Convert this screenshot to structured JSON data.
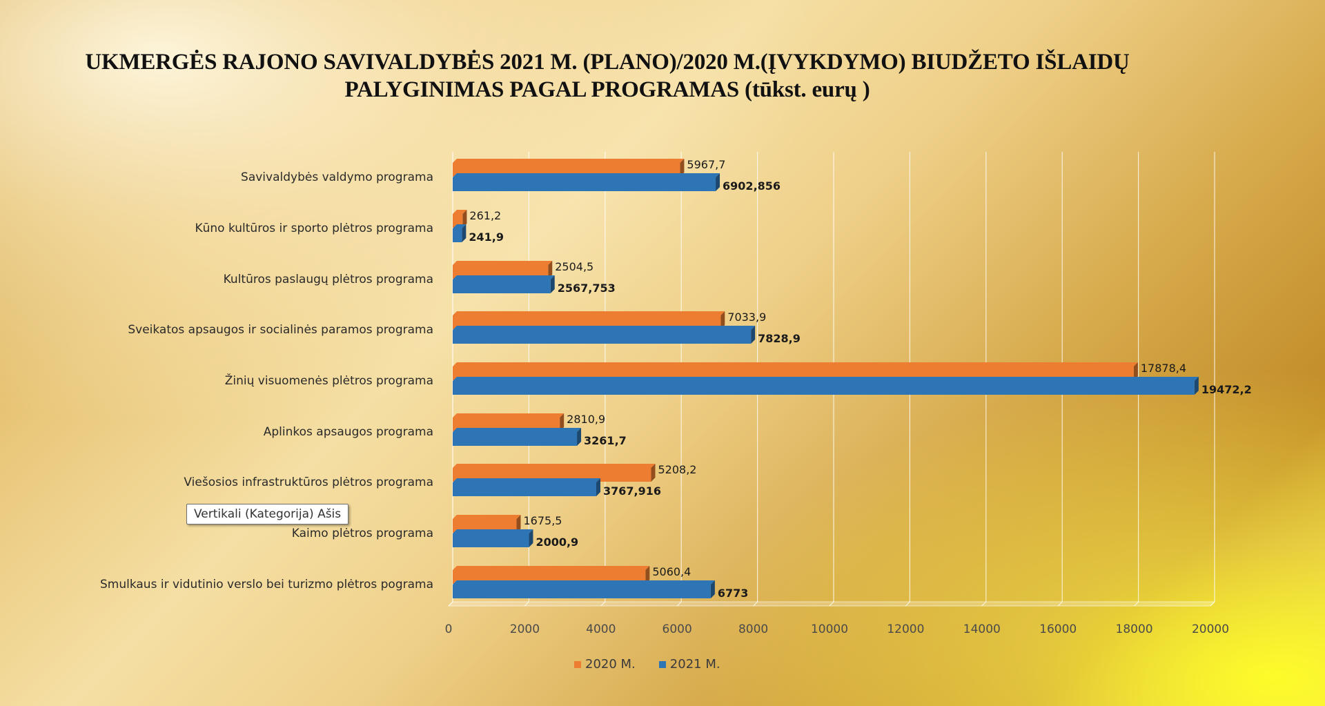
{
  "chart_data": {
    "type": "bar",
    "orientation": "horizontal",
    "title": "UKMERGĖS RAJONO SAVIVALDYBĖS 2021 M. (PLANO)/2020 M.(ĮVYKDYMO) BIUDŽETO IŠLAIDŲ PALYGINIMAS PAGAL PROGRAMAS (tūkst. eurų )",
    "categories": [
      "Savivaldybės valdymo programa",
      "Kūno kultūros ir sporto plėtros programa",
      "Kultūros paslaugų plėtros programa",
      "Sveikatos apsaugos ir socialinės paramos programa",
      "Žinių visuomenės plėtros programa",
      "Aplinkos apsaugos programa",
      "Viešosios infrastruktūros plėtros programa",
      "Kaimo plėtros programa",
      "Smulkaus ir vidutinio verslo bei turizmo plėtros pograma"
    ],
    "series": [
      {
        "name": "2020 M.",
        "color": "#ed7d31",
        "values": [
          5967.7,
          261.2,
          2504.5,
          7033.9,
          17878.4,
          2810.9,
          5208.2,
          1675.5,
          5060.4
        ],
        "labels": [
          "5967,7",
          "261,2",
          "2504,5",
          "7033,9",
          "17878,4",
          "2810,9",
          "5208,2",
          "1675,5",
          "5060,4"
        ]
      },
      {
        "name": "2021 M.",
        "color": "#2e75b6",
        "values": [
          6902.856,
          241.9,
          2567.753,
          7828.9,
          19472.2,
          3261.7,
          3767.916,
          2000.9,
          6773
        ],
        "labels": [
          "6902,856",
          "241,9",
          "2567,753",
          "7828,9",
          "19472,2",
          "3261,7",
          "3767,916",
          "2000,9",
          "6773"
        ]
      }
    ],
    "xlim": [
      0,
      20000
    ],
    "xticks": [
      0,
      2000,
      4000,
      6000,
      8000,
      10000,
      12000,
      14000,
      16000,
      18000,
      20000
    ],
    "xtick_labels": [
      "0",
      "2000",
      "4000",
      "6000",
      "8000",
      "10000",
      "12000",
      "14000",
      "16000",
      "18000",
      "20000"
    ],
    "grid": "vertical",
    "legend_position": "bottom",
    "style": "3d"
  },
  "tooltip": {
    "text": "Vertikali (Kategorija) Ašis"
  }
}
